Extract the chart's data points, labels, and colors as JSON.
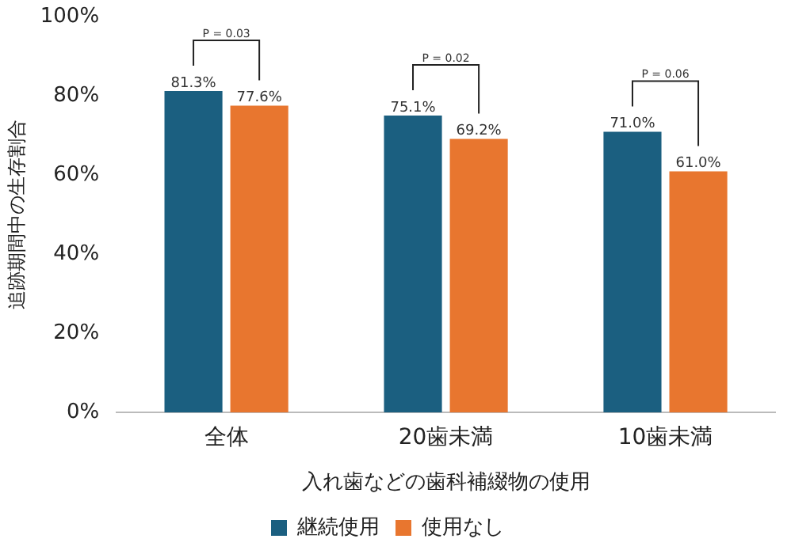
{
  "chart_data": {
    "type": "bar",
    "xlabel": "入れ歯などの歯科補綴物の使用",
    "ylabel": "追跡期間中の生存割合",
    "categories": [
      "全体",
      "20歯未満",
      "10歯未満"
    ],
    "series": [
      {
        "name": "継続使用",
        "color": "#1b5f80",
        "values": [
          81.3,
          75.1,
          71.0
        ],
        "value_labels": [
          "81.3%",
          "75.1%",
          "71.0%"
        ]
      },
      {
        "name": "使用なし",
        "color": "#e8762f",
        "values": [
          77.6,
          69.2,
          61.0
        ],
        "value_labels": [
          "77.6%",
          "69.2%",
          "61.0%"
        ]
      }
    ],
    "ylim": [
      0,
      100
    ],
    "yticks": [
      {
        "value": 0,
        "label": "0%"
      },
      {
        "value": 20,
        "label": "20%"
      },
      {
        "value": 40,
        "label": "40%"
      },
      {
        "value": 60,
        "label": "60%"
      },
      {
        "value": 80,
        "label": "80%"
      },
      {
        "value": 100,
        "label": "100%"
      }
    ],
    "grid": false,
    "legend": "bottom",
    "annotations": [
      "P = 0.03",
      "P = 0.02",
      "P = 0.06"
    ]
  }
}
